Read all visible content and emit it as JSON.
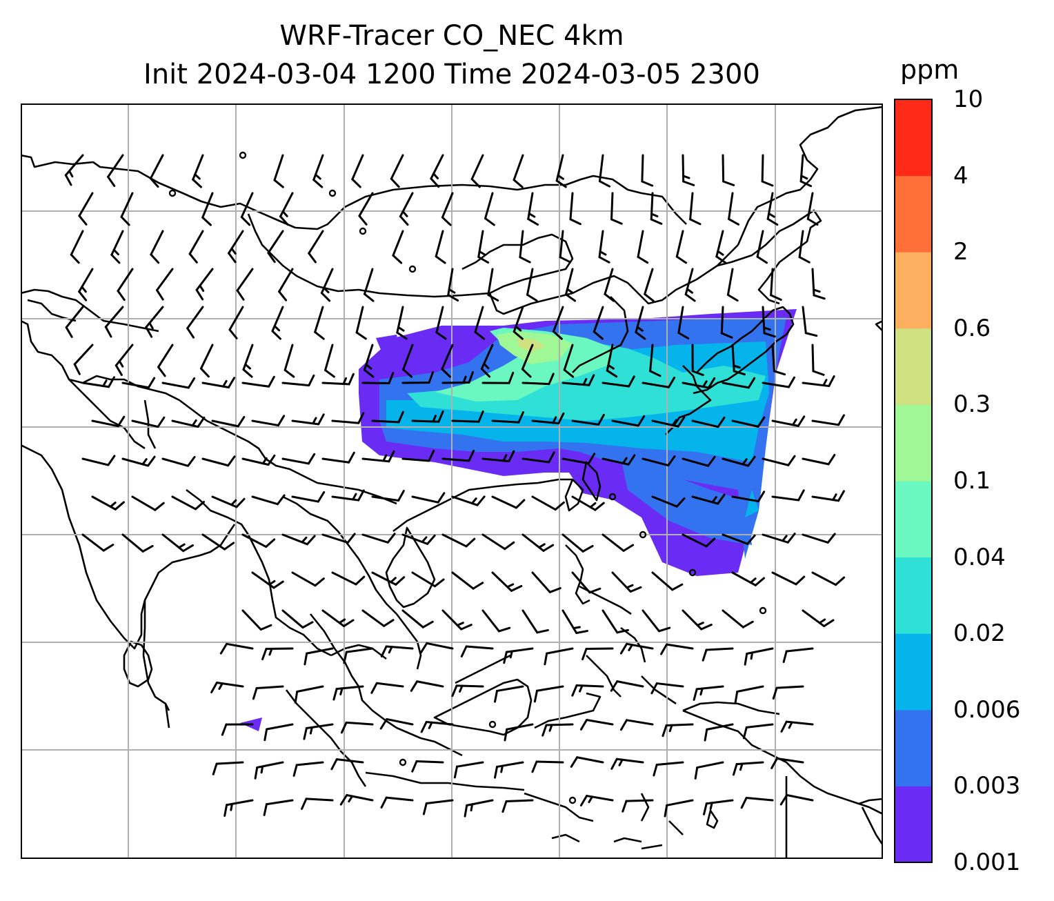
{
  "title": {
    "line1": "WRF-Tracer CO_NEC 4km",
    "line2": "Init 2024-03-04 1200 Time 2024-03-05 2300"
  },
  "colorbar": {
    "unit": "ppm",
    "levels": [
      "0.001",
      "0.003",
      "0.006",
      "0.02",
      "0.04",
      "0.1",
      "0.3",
      "0.6",
      "2",
      "4",
      "10"
    ],
    "colors": [
      "#6a2cf5",
      "#3473f0",
      "#04b4ea",
      "#2ee0d6",
      "#6af7c0",
      "#9ff795",
      "#cfe180",
      "#fcb05f",
      "#ff7038",
      "#ff2a18"
    ]
  },
  "map": {
    "land_outline_color": "#000000",
    "gridline_color": "#b0b0b0",
    "wind_barb_color": "#000000"
  }
}
